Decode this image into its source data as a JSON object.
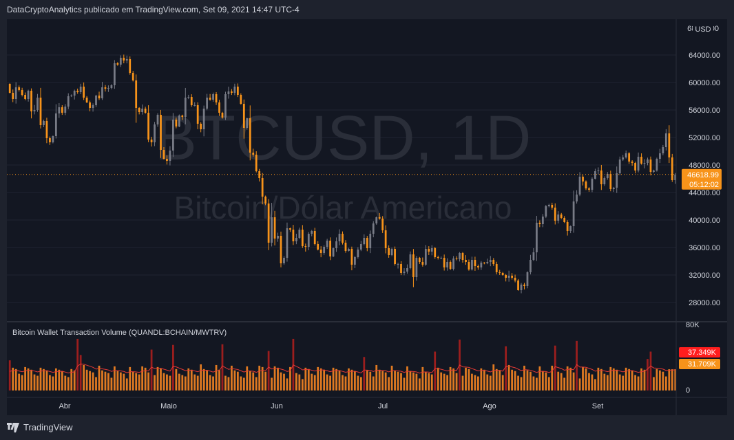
{
  "header": {
    "publisher_text": "DataCryptoAnalytics publicado em TradingView.com, Set 09, 2021 14:47 UTC-4"
  },
  "footer": {
    "brand": "TradingView"
  },
  "watermark": {
    "symbol": "BTCUSD, 1D",
    "description": "Bitcoin/Dólar Americano"
  },
  "price_axis": {
    "currency": "USD",
    "top_label": "68000.00",
    "ticks": [
      "64000.00",
      "60000.00",
      "56000.00",
      "52000.00",
      "48000.00",
      "44000.00",
      "40000.00",
      "36000.00",
      "32000.00",
      "28000.00"
    ],
    "last_price_label": "46618.99",
    "countdown_label": "05:12:02"
  },
  "time_axis": {
    "labels": [
      "Abr",
      "Maio",
      "Jun",
      "Jul",
      "Ago",
      "Set"
    ]
  },
  "indicator": {
    "title": "Bitcoin Wallet Transaction Volume (QUANDL:BCHAIN/MWTRV)",
    "axis_top": "80K",
    "axis_bottom": "0",
    "badge_ma": "37.349K",
    "badge_last": "31.709K"
  },
  "colors": {
    "up_candle": "#787b86",
    "down_candle": "#f7931a",
    "volume_bar": "#e07a22",
    "volume_spike": "#9c1e1e",
    "ma_line": "#e53935",
    "last_price_line": "#f7931a",
    "badge_ma_bg": "#ff1e1e",
    "badge_last_bg": "#f7931a"
  },
  "chart_data": {
    "type": "candlestick",
    "xlabel": "",
    "ylabel": "",
    "ylim": [
      26000,
      68000
    ],
    "last_price": 46618.99,
    "close": [
      58500,
      57600,
      59300,
      58900,
      58200,
      57600,
      58800,
      55800,
      56000,
      57800,
      53800,
      54400,
      51900,
      51300,
      52200,
      55500,
      56400,
      55600,
      56500,
      58000,
      58100,
      58800,
      58600,
      59400,
      57800,
      57100,
      56300,
      56700,
      58100,
      57700,
      59300,
      59100,
      59200,
      59600,
      62800,
      62600,
      63600,
      63200,
      63400,
      61400,
      60300,
      56300,
      55700,
      56200,
      55600,
      51700,
      51300,
      53900,
      55300,
      50200,
      48900,
      48600,
      50100,
      54600,
      53600,
      55200,
      55000,
      57800,
      57900,
      56700,
      56700,
      54000,
      53200,
      56200,
      57800,
      57500,
      58300,
      57100,
      55600,
      54900,
      58300,
      58700,
      58500,
      59400,
      58200,
      56900,
      53400,
      54800,
      49800,
      49500,
      47100,
      46100,
      43400,
      42400,
      36700,
      40400,
      37300,
      37700,
      33700,
      34500,
      38800,
      38600,
      36900,
      37400,
      38600,
      36200,
      36100,
      38000,
      38400,
      36500,
      35700,
      35200,
      36100,
      37000,
      34700,
      35900,
      36900,
      38000,
      36700,
      35500,
      35800,
      33500,
      34600,
      35700,
      36500,
      37400,
      35900,
      38000,
      39500,
      40400,
      40200,
      38500,
      35900,
      34900,
      35800,
      33600,
      33600,
      32300,
      32500,
      33000,
      35000,
      31700,
      34500,
      33900,
      33500,
      35800,
      35400,
      35900,
      34600,
      34500,
      34500,
      33100,
      33900,
      32900,
      34400,
      34300,
      35200,
      34200,
      33900,
      32800,
      34200,
      33300,
      33100,
      33800,
      33700,
      33900,
      34200,
      33600,
      32400,
      32300,
      32000,
      31600,
      31900,
      31600,
      31200,
      29800,
      30600,
      30400,
      32400,
      34200,
      35300,
      39600,
      39400,
      40500,
      42000,
      42200,
      41800,
      39900,
      40800,
      40300,
      39700,
      38400,
      39100,
      42700,
      43700,
      46300,
      45600,
      44600,
      44400,
      46000,
      47100,
      47200,
      45200,
      46100,
      46700,
      44500,
      44700,
      46800,
      48800,
      49100,
      49700,
      48500,
      48300,
      47200,
      49200,
      48200,
      48300,
      48800,
      47000,
      47200,
      48900,
      49700,
      50600,
      52600,
      49100,
      45800,
      46618.99
    ]
  }
}
